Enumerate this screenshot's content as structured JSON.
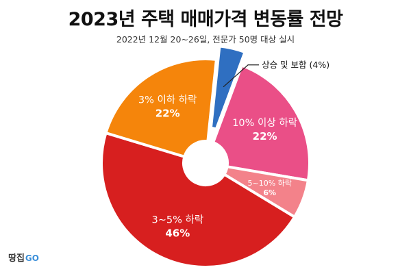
{
  "chart_data": {
    "type": "pie",
    "title": "2023년 주택 매매가격 변동률 전망",
    "subtitle": "2022년 12월 20~26일, 전문가 50명 대상 실시",
    "slices": [
      {
        "label": "상승 및 보합",
        "value": 4,
        "value_label": "(4%)",
        "color": "#2f6fc1"
      },
      {
        "label": "10% 이상 하락",
        "value": 22,
        "value_label": "22%",
        "color": "#ea4f87"
      },
      {
        "label": "5~10% 하락",
        "value": 6,
        "value_label": "6%",
        "color": "#f3828a"
      },
      {
        "label": "3~5% 하락",
        "value": 46,
        "value_label": "46%",
        "color": "#d71f1f"
      },
      {
        "label": "3% 이하 하락",
        "value": 22,
        "value_label": "22%",
        "color": "#f5850b"
      }
    ],
    "style": "donut",
    "exploded_slice": "상승 및 보합"
  },
  "brand": {
    "name": "땅집",
    "suffix": "GO"
  }
}
